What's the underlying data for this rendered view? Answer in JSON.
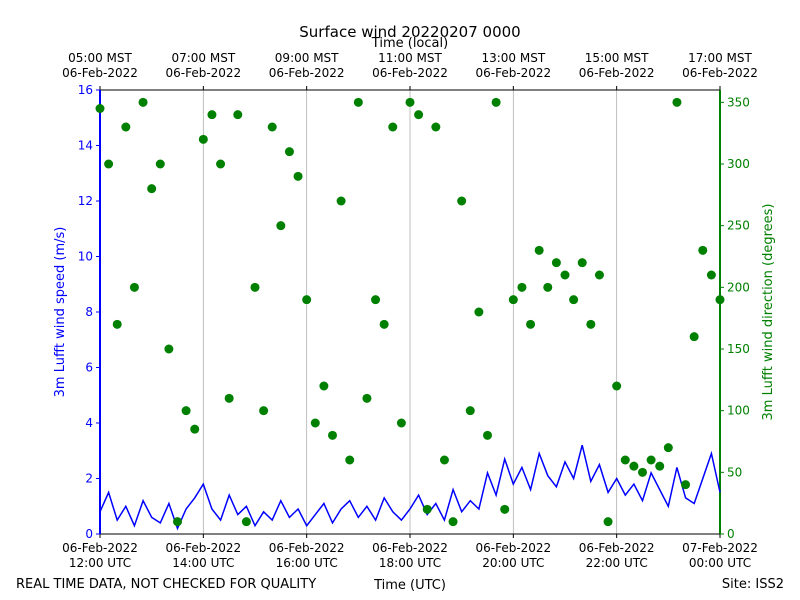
{
  "chart_data": {
    "type": "line-scatter",
    "title": "Surface wind 20220207 0000",
    "xlabel": "Time (UTC)",
    "x2label": "Time (local)",
    "ylabel": "3m Lufft wind speed (m/s)",
    "y2label": "3m Lufft wind direction (degrees)",
    "footer_left": "REAL TIME DATA, NOT CHECKED FOR QUALITY",
    "footer_right": "Site: ISS2",
    "xlim": [
      "2022-02-06 12:00",
      "2022-02-07 00:00"
    ],
    "xticks": [
      {
        "value": "2022-02-06 12:00",
        "label": "06-Feb-2022\n12:00 UTC"
      },
      {
        "value": "2022-02-06 14:00",
        "label": "06-Feb-2022\n14:00 UTC"
      },
      {
        "value": "2022-02-06 16:00",
        "label": "06-Feb-2022\n16:00 UTC"
      },
      {
        "value": "2022-02-06 18:00",
        "label": "06-Feb-2022\n18:00 UTC"
      },
      {
        "value": "2022-02-06 20:00",
        "label": "06-Feb-2022\n20:00 UTC"
      },
      {
        "value": "2022-02-06 22:00",
        "label": "06-Feb-2022\n22:00 UTC"
      },
      {
        "value": "2022-02-07 00:00",
        "label": "07-Feb-2022\n00:00 UTC"
      }
    ],
    "x2ticks": [
      {
        "value": "2022-02-06 12:00",
        "label": "05:00 MST\n06-Feb-2022"
      },
      {
        "value": "2022-02-06 14:00",
        "label": "07:00 MST\n06-Feb-2022"
      },
      {
        "value": "2022-02-06 16:00",
        "label": "09:00 MST\n06-Feb-2022"
      },
      {
        "value": "2022-02-06 18:00",
        "label": "11:00 MST\n06-Feb-2022"
      },
      {
        "value": "2022-02-06 20:00",
        "label": "13:00 MST\n06-Feb-2022"
      },
      {
        "value": "2022-02-06 22:00",
        "label": "15:00 MST\n06-Feb-2022"
      },
      {
        "value": "2022-02-07 00:00",
        "label": "17:00 MST\n06-Feb-2022"
      }
    ],
    "ylim": [
      0,
      16
    ],
    "yticks": [
      0,
      2,
      4,
      6,
      8,
      10,
      12,
      14,
      16
    ],
    "y2lim": [
      0,
      360
    ],
    "y2ticks": [
      0,
      50,
      100,
      150,
      200,
      250,
      300,
      350
    ],
    "grid": true,
    "x": [
      "2022-02-06 12:00",
      "2022-02-06 12:10",
      "2022-02-06 12:20",
      "2022-02-06 12:30",
      "2022-02-06 12:40",
      "2022-02-06 12:50",
      "2022-02-06 13:00",
      "2022-02-06 13:10",
      "2022-02-06 13:20",
      "2022-02-06 13:30",
      "2022-02-06 13:40",
      "2022-02-06 13:50",
      "2022-02-06 14:00",
      "2022-02-06 14:10",
      "2022-02-06 14:20",
      "2022-02-06 14:30",
      "2022-02-06 14:40",
      "2022-02-06 14:50",
      "2022-02-06 15:00",
      "2022-02-06 15:10",
      "2022-02-06 15:20",
      "2022-02-06 15:30",
      "2022-02-06 15:40",
      "2022-02-06 15:50",
      "2022-02-06 16:00",
      "2022-02-06 16:10",
      "2022-02-06 16:20",
      "2022-02-06 16:30",
      "2022-02-06 16:40",
      "2022-02-06 16:50",
      "2022-02-06 17:00",
      "2022-02-06 17:10",
      "2022-02-06 17:20",
      "2022-02-06 17:30",
      "2022-02-06 17:40",
      "2022-02-06 17:50",
      "2022-02-06 18:00",
      "2022-02-06 18:10",
      "2022-02-06 18:20",
      "2022-02-06 18:30",
      "2022-02-06 18:40",
      "2022-02-06 18:50",
      "2022-02-06 19:00",
      "2022-02-06 19:10",
      "2022-02-06 19:20",
      "2022-02-06 19:30",
      "2022-02-06 19:40",
      "2022-02-06 19:50",
      "2022-02-06 20:00",
      "2022-02-06 20:10",
      "2022-02-06 20:20",
      "2022-02-06 20:30",
      "2022-02-06 20:40",
      "2022-02-06 20:50",
      "2022-02-06 21:00",
      "2022-02-06 21:10",
      "2022-02-06 21:20",
      "2022-02-06 21:30",
      "2022-02-06 21:40",
      "2022-02-06 21:50",
      "2022-02-06 22:00",
      "2022-02-06 22:10",
      "2022-02-06 22:20",
      "2022-02-06 22:30",
      "2022-02-06 22:40",
      "2022-02-06 22:50",
      "2022-02-06 23:00",
      "2022-02-06 23:10",
      "2022-02-06 23:20",
      "2022-02-06 23:30",
      "2022-02-06 23:40",
      "2022-02-06 23:50",
      "2022-02-07 00:00"
    ],
    "series": [
      {
        "color": "#0000ff",
        "style": "line",
        "values": [
          0.8,
          1.5,
          0.5,
          1.0,
          0.3,
          1.2,
          0.6,
          0.4,
          1.1,
          0.2,
          0.9,
          1.3,
          1.8,
          0.9,
          0.5,
          1.4,
          0.7,
          1.0,
          0.3,
          0.8,
          0.5,
          1.2,
          0.6,
          0.9,
          0.3,
          0.7,
          1.1,
          0.4,
          0.9,
          1.2,
          0.6,
          1.0,
          0.5,
          1.3,
          0.8,
          0.5,
          0.9,
          1.4,
          0.7,
          1.1,
          0.5,
          1.6,
          0.8,
          1.2,
          0.9,
          2.2,
          1.4,
          2.7,
          1.8,
          2.4,
          1.6,
          2.9,
          2.1,
          1.7,
          2.6,
          2.0,
          3.2,
          1.9,
          2.5,
          1.5,
          2.0,
          1.4,
          1.8,
          1.2,
          2.2,
          1.6,
          1.0,
          2.4,
          1.3,
          1.1,
          2.0,
          2.9,
          1.5
        ]
      },
      {
        "color": "#008000",
        "style": "dots",
        "axis": "y2",
        "values": [
          345,
          300,
          170,
          330,
          200,
          350,
          280,
          300,
          150,
          10,
          100,
          85,
          320,
          340,
          300,
          110,
          340,
          10,
          200,
          100,
          330,
          250,
          310,
          290,
          190,
          90,
          120,
          80,
          270,
          60,
          350,
          110,
          190,
          170,
          330,
          90,
          350,
          340,
          20,
          330,
          60,
          10,
          270,
          100,
          180,
          80,
          350,
          20,
          190,
          200,
          170,
          230,
          200,
          220,
          210,
          190,
          220,
          170,
          210,
          10,
          120,
          60,
          55,
          50,
          60,
          55,
          70,
          350,
          40,
          160,
          230,
          210,
          190
        ]
      }
    ]
  }
}
